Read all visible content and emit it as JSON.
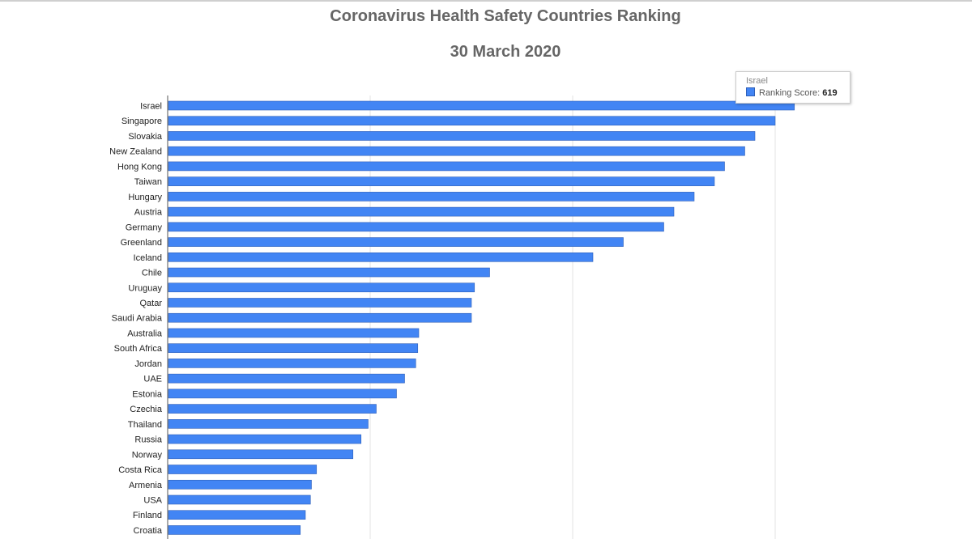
{
  "chart_data": {
    "type": "bar",
    "orientation": "horizontal",
    "title": "Coronavirus Health Safety Countries Ranking",
    "subtitle": "30 March 2020",
    "series_name": "Ranking Score",
    "categories": [
      "Israel",
      "Singapore",
      "Slovakia",
      "New Zealand",
      "Hong Kong",
      "Taiwan",
      "Hungary",
      "Austria",
      "Germany",
      "Greenland",
      "Iceland",
      "Chile",
      "Uruguay",
      "Qatar",
      "Saudi Arabia",
      "Australia",
      "South Africa",
      "Jordan",
      "UAE",
      "Estonia",
      "Czechia",
      "Thailand",
      "Russia",
      "Norway",
      "Costa Rica",
      "Armenia",
      "USA",
      "Finland",
      "Croatia"
    ],
    "values": [
      619,
      600,
      580,
      570,
      550,
      540,
      520,
      500,
      490,
      450,
      420,
      318,
      303,
      300,
      300,
      248,
      247,
      245,
      234,
      226,
      206,
      198,
      191,
      183,
      147,
      142,
      141,
      136,
      131
    ],
    "xlim": [
      0,
      600
    ],
    "grid": true,
    "bar_color": "#4285f4",
    "tooltip": {
      "category": "Israel",
      "label": "Ranking Score:",
      "value": "619"
    }
  }
}
